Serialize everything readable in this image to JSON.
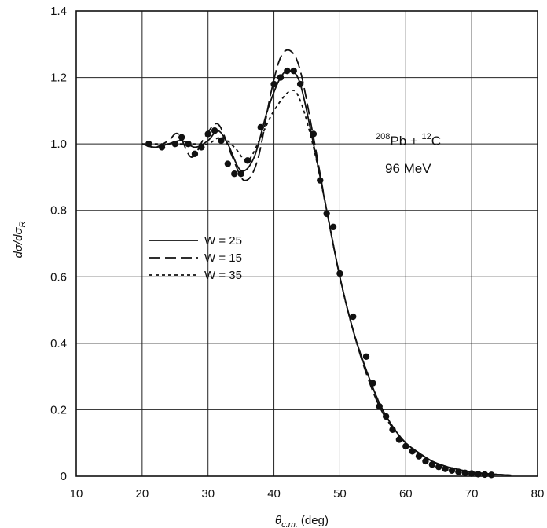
{
  "chart_data": {
    "type": "line",
    "xlabel": "θ",
    "xlabel_sub": "c.m.",
    "xlabel_unit": "(deg)",
    "ylabel": "dσ/dσ",
    "ylabel_sub": "R",
    "xlim": [
      10,
      80
    ],
    "ylim": [
      0,
      1.4
    ],
    "x_ticks": [
      "10",
      "20",
      "30",
      "40",
      "50",
      "60",
      "70",
      "80"
    ],
    "y_ticks": [
      "0",
      "0.2",
      "0.4",
      "0.6",
      "0.8",
      "1.0",
      "1.2",
      "1.4"
    ],
    "grid": true,
    "legend_position": "center-left",
    "annotation": {
      "mass_pb": "208",
      "elem_pb": "Pb + ",
      "mass_c": "12",
      "elem_c": "C",
      "energy": "96 MeV"
    },
    "series": [
      {
        "name": "W = 25",
        "style": "solid",
        "x": [
          20,
          22,
          24,
          26,
          28,
          30,
          31.5,
          33,
          35,
          37,
          39,
          41,
          42.5,
          44,
          46,
          48,
          50,
          52,
          54,
          56,
          58,
          60,
          62,
          64,
          66,
          68,
          70,
          72,
          74,
          76
        ],
        "y": [
          1.0,
          0.99,
          1.0,
          1.01,
          0.99,
          1.01,
          1.04,
          1.0,
          0.92,
          0.96,
          1.1,
          1.2,
          1.22,
          1.18,
          1.0,
          0.8,
          0.6,
          0.44,
          0.32,
          0.22,
          0.15,
          0.1,
          0.07,
          0.045,
          0.03,
          0.02,
          0.012,
          0.008,
          0.005,
          0.003
        ]
      },
      {
        "name": "W = 15",
        "style": "dashed",
        "x": [
          20,
          22,
          24,
          25.5,
          27.5,
          29.5,
          31.5,
          33.5,
          35.5,
          37.5,
          39.5,
          41,
          42.5,
          44,
          46,
          48,
          50,
          52,
          54,
          56,
          58,
          60,
          62,
          64,
          66,
          68,
          70,
          72,
          74,
          76
        ],
        "y": [
          1.0,
          0.99,
          1.01,
          1.03,
          0.96,
          1.02,
          1.06,
          0.97,
          0.89,
          0.95,
          1.15,
          1.26,
          1.28,
          1.22,
          1.02,
          0.8,
          0.6,
          0.44,
          0.31,
          0.21,
          0.145,
          0.1,
          0.07,
          0.045,
          0.03,
          0.02,
          0.012,
          0.008,
          0.005,
          0.003
        ]
      },
      {
        "name": "W = 35",
        "style": "dotted",
        "x": [
          20,
          24,
          28,
          30,
          32,
          34,
          36,
          38,
          40,
          42.5,
          44,
          46,
          48,
          50,
          52,
          54,
          56,
          58,
          60,
          62,
          64,
          66,
          68,
          70,
          72,
          74,
          76
        ],
        "y": [
          1.0,
          1.0,
          1.0,
          1.0,
          1.02,
          0.99,
          0.95,
          1.02,
          1.1,
          1.16,
          1.13,
          0.99,
          0.8,
          0.6,
          0.44,
          0.32,
          0.22,
          0.15,
          0.1,
          0.07,
          0.045,
          0.03,
          0.02,
          0.012,
          0.008,
          0.005,
          0.003
        ]
      }
    ],
    "data_points": {
      "x": [
        21,
        23,
        25,
        26,
        27,
        28,
        29,
        30,
        31,
        32,
        33,
        34,
        35,
        36,
        38,
        40,
        41,
        42,
        43,
        44,
        46,
        47,
        48,
        49,
        50,
        52,
        54,
        55,
        56,
        57,
        58,
        59,
        60,
        61,
        62,
        63,
        64,
        65,
        66,
        67,
        68,
        69,
        70,
        71,
        72,
        73
      ],
      "y": [
        1.0,
        0.99,
        1.0,
        1.02,
        1.0,
        0.97,
        0.99,
        1.03,
        1.04,
        1.01,
        0.94,
        0.91,
        0.91,
        0.95,
        1.05,
        1.18,
        1.2,
        1.22,
        1.22,
        1.18,
        1.03,
        0.89,
        0.79,
        0.75,
        0.61,
        0.48,
        0.36,
        0.28,
        0.21,
        0.18,
        0.14,
        0.11,
        0.09,
        0.075,
        0.06,
        0.045,
        0.035,
        0.028,
        0.022,
        0.017,
        0.013,
        0.01,
        0.008,
        0.006,
        0.005,
        0.004
      ]
    }
  }
}
